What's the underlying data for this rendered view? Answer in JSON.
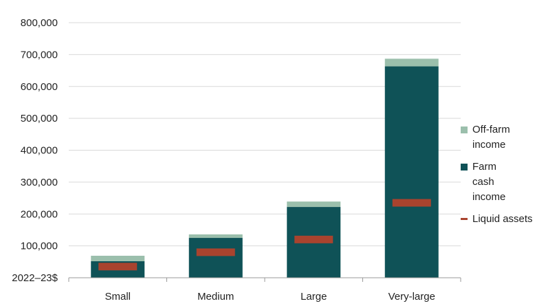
{
  "chart_data": {
    "type": "bar",
    "stacked": true,
    "categories": [
      "Small",
      "Medium",
      "Large",
      "Very-large"
    ],
    "series": [
      {
        "name": "Farm cash income",
        "kind": "bar",
        "color": "#0f5257",
        "values": [
          52000,
          125000,
          222000,
          663000
        ]
      },
      {
        "name": "Off-farm income",
        "kind": "bar",
        "color": "#9bbfac",
        "values": [
          17000,
          11000,
          17000,
          24000
        ]
      },
      {
        "name": "Liquid assets",
        "kind": "marker",
        "color": "#a9432e",
        "values": [
          35000,
          80000,
          120000,
          235000
        ]
      }
    ],
    "y_ticks": [
      "2022–23$",
      "100,000",
      "200,000",
      "300,000",
      "400,000",
      "500,000",
      "600,000",
      "700,000",
      "800,000"
    ],
    "ylim": [
      0,
      800000
    ],
    "grid": true,
    "legend_position": "right"
  }
}
